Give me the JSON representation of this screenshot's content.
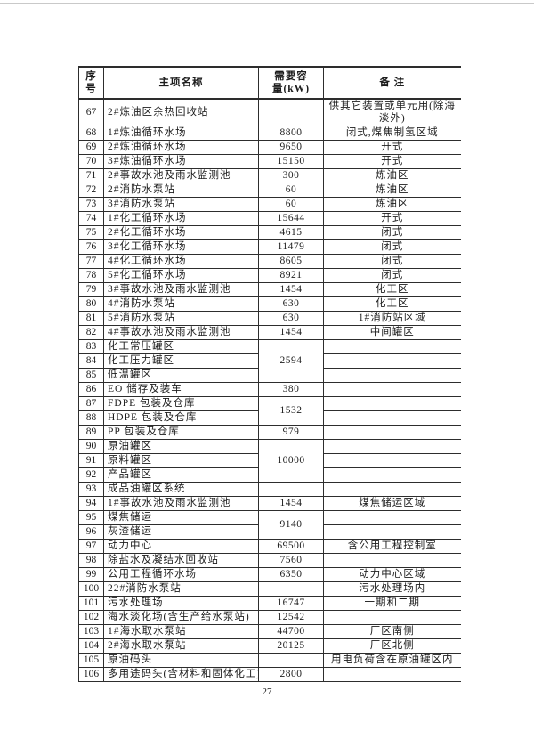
{
  "colors": {
    "border": "#2d2d2d",
    "text": "#1c1c1c"
  },
  "page": {
    "number": "27"
  },
  "table": {
    "headers": {
      "no": "序\n号",
      "name": "主项名称",
      "capacity": "需要容\n量(kW)",
      "remark": "备 注"
    },
    "rows": [
      {
        "no": "67",
        "name": "2#炼油区余热回收站",
        "cap": "",
        "remark": "供其它装置或单元用(除海淡外)",
        "tall": true
      },
      {
        "no": "68",
        "name": "1#炼油循环水场",
        "cap": "8800",
        "remark": "闭式,煤焦制氢区域"
      },
      {
        "no": "69",
        "name": "2#炼油循环水场",
        "cap": "9650",
        "remark": "开式"
      },
      {
        "no": "70",
        "name": "3#炼油循环水场",
        "cap": "15150",
        "remark": "开式"
      },
      {
        "no": "71",
        "name": "2#事故水池及雨水监测池",
        "cap": "300",
        "remark": "炼油区"
      },
      {
        "no": "72",
        "name": "2#消防水泵站",
        "cap": "60",
        "remark": "炼油区"
      },
      {
        "no": "73",
        "name": "3#消防水泵站",
        "cap": "60",
        "remark": "炼油区"
      },
      {
        "no": "74",
        "name": "1#化工循环水场",
        "cap": "15644",
        "remark": "开式"
      },
      {
        "no": "75",
        "name": "2#化工循环水场",
        "cap": "4615",
        "remark": "闭式"
      },
      {
        "no": "76",
        "name": "3#化工循环水场",
        "cap": "11479",
        "remark": "闭式"
      },
      {
        "no": "77",
        "name": "4#化工循环水场",
        "cap": "8605",
        "remark": "闭式"
      },
      {
        "no": "78",
        "name": "5#化工循环水场",
        "cap": "8921",
        "remark": "闭式"
      },
      {
        "no": "79",
        "name": "3#事故水池及雨水监测池",
        "cap": "1454",
        "remark": "化工区"
      },
      {
        "no": "80",
        "name": "4#消防水泵站",
        "cap": "630",
        "remark": "化工区"
      },
      {
        "no": "81",
        "name": "5#消防水泵站",
        "cap": "630",
        "remark": "1#消防站区域"
      },
      {
        "no": "82",
        "name": "4#事故水池及雨水监测池",
        "cap": "1454",
        "remark": "中间罐区"
      },
      {
        "no": "83",
        "name": "化工常压罐区",
        "cap": "2594",
        "capSpan": 3,
        "remark": ""
      },
      {
        "no": "84",
        "name": "化工压力罐区",
        "capSkip": true,
        "remark": ""
      },
      {
        "no": "85",
        "name": "低温罐区",
        "capSkip": true,
        "remark": ""
      },
      {
        "no": "86",
        "name": "EO 储存及装车",
        "cap": "380",
        "remark": ""
      },
      {
        "no": "87",
        "name": "FDPE 包装及仓库",
        "cap": "1532",
        "capSpan": 2,
        "remark": ""
      },
      {
        "no": "88",
        "name": "HDPE 包装及仓库",
        "capSkip": true,
        "remark": ""
      },
      {
        "no": "89",
        "name": "PP 包装及仓库",
        "cap": "979",
        "remark": ""
      },
      {
        "no": "90",
        "name": "原油罐区",
        "cap": "10000",
        "capSpan": 3,
        "remark": ""
      },
      {
        "no": "91",
        "name": "原料罐区",
        "capSkip": true,
        "remark": ""
      },
      {
        "no": "92",
        "name": "产品罐区",
        "capSkip": true,
        "remark": ""
      },
      {
        "no": "93",
        "name": "成品油罐区系统",
        "cap": "",
        "remark": ""
      },
      {
        "no": "94",
        "name": "1#事故水池及雨水监测池",
        "cap": "1454",
        "remark": "煤焦储运区域"
      },
      {
        "no": "95",
        "name": "煤焦储运",
        "cap": "9140",
        "capSpan": 2,
        "remark": ""
      },
      {
        "no": "96",
        "name": "灰渣储运",
        "capSkip": true,
        "remark": ""
      },
      {
        "no": "97",
        "name": "动力中心",
        "cap": "69500",
        "remark": "含公用工程控制室"
      },
      {
        "no": "98",
        "name": "除盐水及凝结水回收站",
        "cap": "7560",
        "remark": ""
      },
      {
        "no": "99",
        "name": "公用工程循环水场",
        "cap": "6350",
        "remark": "动力中心区域"
      },
      {
        "no": "100",
        "name": "22#消防水泵站",
        "cap": "",
        "remark": "污水处理场内"
      },
      {
        "no": "101",
        "name": "污水处理场",
        "cap": "16747",
        "remark": "一期和二期"
      },
      {
        "no": "102",
        "name": "海水淡化场(含生产给水泵站)",
        "cap": "12542",
        "remark": ""
      },
      {
        "no": "103",
        "name": "1#海水取水泵站",
        "cap": "44700",
        "remark": "厂区南侧"
      },
      {
        "no": "104",
        "name": "2#海水取水泵站",
        "cap": "20125",
        "remark": "厂区北侧"
      },
      {
        "no": "105",
        "name": "原油码头",
        "cap": "",
        "remark": "用电负荷含在原油罐区内"
      },
      {
        "no": "106",
        "name": "多用途码头(含材料和固体化工)",
        "cap": "2800",
        "remark": ""
      }
    ]
  }
}
